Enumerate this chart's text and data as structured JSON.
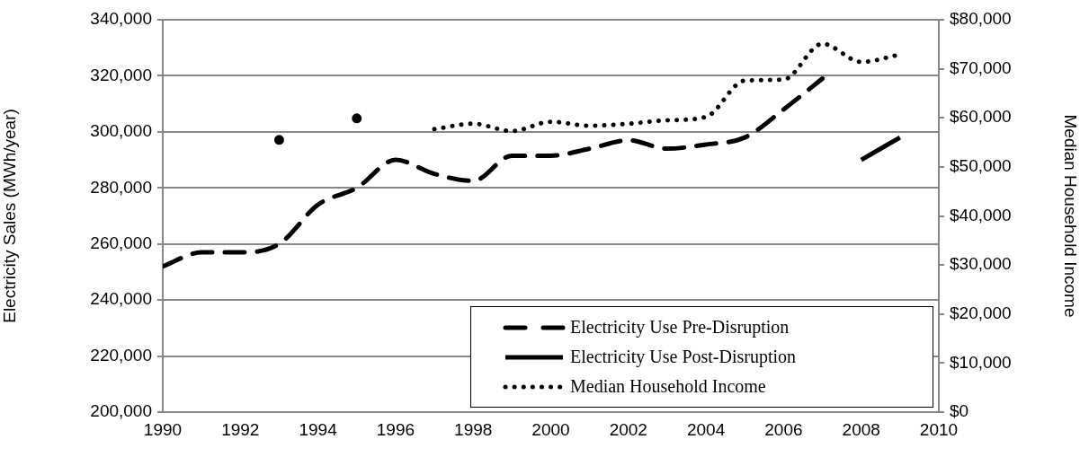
{
  "chart_data": {
    "type": "line",
    "xlabel": null,
    "ylabel": "Electricity Sales (MWh/year)",
    "y2label": "Median Household Income",
    "x": [
      1990,
      1991,
      1992,
      1993,
      1994,
      1995,
      1996,
      1997,
      1998,
      1999,
      2000,
      2001,
      2002,
      2003,
      2004,
      2005,
      2006,
      2007,
      2008,
      2009
    ],
    "series": [
      {
        "name": "Electricity Use Pre-Disruption",
        "color": "#000000",
        "line_style": "dashed",
        "values": [
          252000,
          257000,
          257000,
          260000,
          274000,
          280000,
          290000,
          285000,
          282500,
          291500,
          291500,
          294000,
          297000,
          294000,
          295500,
          298000,
          308000,
          319000,
          null,
          null
        ]
      },
      {
        "name": "Electricity Use Post-Disruption",
        "color": "#000000",
        "line_style": "solid",
        "values": [
          null,
          null,
          null,
          null,
          null,
          null,
          null,
          null,
          null,
          null,
          null,
          null,
          null,
          null,
          null,
          null,
          null,
          null,
          290000,
          298000
        ]
      },
      {
        "name": "Median Household Income",
        "color": "#000000",
        "line_style": "dotted",
        "axis": "y2",
        "values": [
          null,
          null,
          null,
          55500,
          null,
          59900,
          null,
          57700,
          58800,
          57300,
          59200,
          58400,
          58800,
          59500,
          60200,
          67600,
          67800,
          75100,
          71400,
          72900
        ]
      }
    ],
    "xlim": [
      1990,
      2010
    ],
    "xticks": [
      1990,
      1992,
      1994,
      1996,
      1998,
      2000,
      2002,
      2004,
      2006,
      2008,
      2010
    ],
    "ylim": [
      200000,
      340000
    ],
    "yticks": [
      {
        "value": 200000,
        "label": "200,000"
      },
      {
        "value": 220000,
        "label": "220,000"
      },
      {
        "value": 240000,
        "label": "240,000"
      },
      {
        "value": 260000,
        "label": "260,000"
      },
      {
        "value": 280000,
        "label": "280,000"
      },
      {
        "value": 300000,
        "label": "300,000"
      },
      {
        "value": 320000,
        "label": "320,000"
      },
      {
        "value": 340000,
        "label": "340,000"
      }
    ],
    "y2lim": [
      0,
      80000
    ],
    "y2ticks": [
      {
        "value": 0,
        "label": "$0"
      },
      {
        "value": 10000,
        "label": "$10,000"
      },
      {
        "value": 20000,
        "label": "$20,000"
      },
      {
        "value": 30000,
        "label": "$30,000"
      },
      {
        "value": 40000,
        "label": "$40,000"
      },
      {
        "value": 50000,
        "label": "$50,000"
      },
      {
        "value": 60000,
        "label": "$60,000"
      },
      {
        "value": 70000,
        "label": "$70,000"
      },
      {
        "value": 80000,
        "label": "$80,000"
      }
    ],
    "grid": "y",
    "legend": "bottom right",
    "marker": "none"
  }
}
